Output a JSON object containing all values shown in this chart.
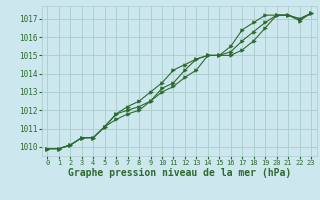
{
  "bg_color": "#cce8ee",
  "grid_color": "#aacccc",
  "line_color": "#2d6a2d",
  "marker_color": "#2d6a2d",
  "xlabel": "Graphe pression niveau de la mer (hPa)",
  "xlabel_fontsize": 7,
  "xlim": [
    -0.5,
    23.5
  ],
  "ylim": [
    1009.5,
    1017.7
  ],
  "yticks": [
    1010,
    1011,
    1012,
    1013,
    1014,
    1015,
    1016,
    1017
  ],
  "xticks": [
    0,
    1,
    2,
    3,
    4,
    5,
    6,
    7,
    8,
    9,
    10,
    11,
    12,
    13,
    14,
    15,
    16,
    17,
    18,
    19,
    20,
    21,
    22,
    23
  ],
  "series": [
    [
      1009.9,
      1009.9,
      1010.1,
      1010.5,
      1010.5,
      1011.1,
      1011.8,
      1012.2,
      1012.5,
      1013.0,
      1013.5,
      1014.2,
      1014.5,
      1014.8,
      1015.0,
      1015.0,
      1015.5,
      1016.4,
      1016.8,
      1017.2,
      1017.2,
      1017.2,
      1017.0,
      1017.3
    ],
    [
      1009.9,
      1009.9,
      1010.1,
      1010.5,
      1010.5,
      1011.1,
      1011.5,
      1011.8,
      1012.0,
      1012.5,
      1013.2,
      1013.5,
      1014.2,
      1014.8,
      1015.0,
      1015.0,
      1015.0,
      1015.3,
      1015.8,
      1016.5,
      1017.2,
      1017.2,
      1017.0,
      1017.3
    ],
    [
      1009.9,
      1009.9,
      1010.1,
      1010.5,
      1010.5,
      1011.1,
      1011.8,
      1012.0,
      1012.2,
      1012.5,
      1013.0,
      1013.3,
      1013.8,
      1014.2,
      1015.0,
      1015.0,
      1015.2,
      1015.8,
      1016.3,
      1016.8,
      1017.2,
      1017.2,
      1016.9,
      1017.3
    ]
  ]
}
